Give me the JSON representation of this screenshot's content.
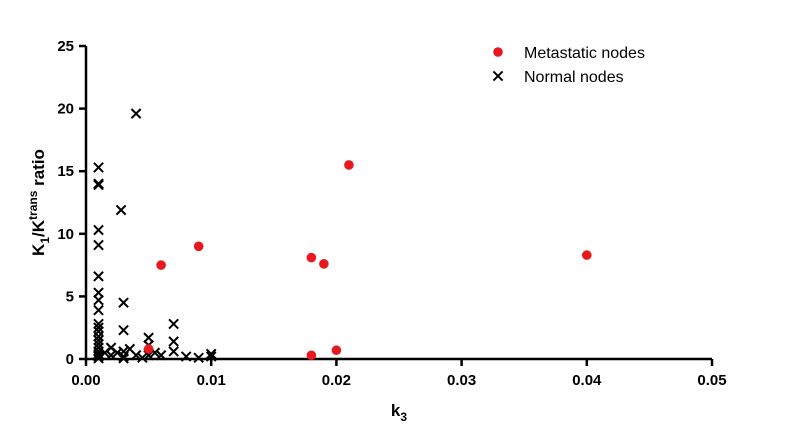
{
  "chart_data": {
    "type": "scatter",
    "xlabel": {
      "base": "k",
      "sub": "3"
    },
    "ylabel": {
      "parts": [
        {
          "text": "K",
          "shift": "none"
        },
        {
          "text": "1",
          "shift": "sub"
        },
        {
          "text": "/K",
          "shift": "none"
        },
        {
          "text": "trans",
          "shift": "super"
        },
        {
          "text": " ratio",
          "shift": "none"
        }
      ]
    },
    "xlim": [
      0,
      0.05
    ],
    "ylim": [
      0,
      25
    ],
    "x_ticks": [
      "0.00",
      "0.01",
      "0.02",
      "0.03",
      "0.04",
      "0.05"
    ],
    "y_ticks": [
      "0",
      "5",
      "10",
      "15",
      "20",
      "25"
    ],
    "x_tick_values": [
      0,
      0.01,
      0.02,
      0.03,
      0.04,
      0.05
    ],
    "y_tick_values": [
      0,
      5,
      10,
      15,
      20,
      25
    ],
    "grid": false,
    "legend_position": "top-right",
    "series": [
      {
        "name": "Metastatic nodes",
        "marker": "circle",
        "color": "#e8191e",
        "points": [
          [
            0.005,
            0.8
          ],
          [
            0.006,
            7.5
          ],
          [
            0.009,
            9.0
          ],
          [
            0.018,
            8.1
          ],
          [
            0.019,
            7.6
          ],
          [
            0.021,
            15.5
          ],
          [
            0.018,
            0.3
          ],
          [
            0.02,
            0.7
          ],
          [
            0.04,
            8.3
          ]
        ]
      },
      {
        "name": "Normal nodes",
        "marker": "x",
        "color": "#000000",
        "points": [
          [
            0.001,
            15.3
          ],
          [
            0.001,
            14.0
          ],
          [
            0.001,
            13.9
          ],
          [
            0.001,
            10.3
          ],
          [
            0.001,
            9.1
          ],
          [
            0.001,
            6.6
          ],
          [
            0.001,
            5.3
          ],
          [
            0.001,
            4.7
          ],
          [
            0.001,
            3.9
          ],
          [
            0.001,
            2.8
          ],
          [
            0.001,
            2.5
          ],
          [
            0.001,
            2.2
          ],
          [
            0.001,
            1.8
          ],
          [
            0.001,
            1.5
          ],
          [
            0.001,
            1.2
          ],
          [
            0.001,
            0.9
          ],
          [
            0.001,
            0.6
          ],
          [
            0.001,
            0.4
          ],
          [
            0.001,
            0.2
          ],
          [
            0.001,
            0.05
          ],
          [
            0.0015,
            0.5
          ],
          [
            0.002,
            0.9
          ],
          [
            0.002,
            0.3
          ],
          [
            0.0025,
            0.5
          ],
          [
            0.003,
            4.5
          ],
          [
            0.003,
            2.3
          ],
          [
            0.003,
            0.6
          ],
          [
            0.003,
            0.2
          ],
          [
            0.003,
            0.05
          ],
          [
            0.0028,
            11.9
          ],
          [
            0.004,
            19.6
          ],
          [
            0.0035,
            0.8
          ],
          [
            0.004,
            0.3
          ],
          [
            0.005,
            1.7
          ],
          [
            0.005,
            1.1
          ],
          [
            0.005,
            0.3
          ],
          [
            0.0045,
            0.1
          ],
          [
            0.0055,
            0.5
          ],
          [
            0.006,
            0.3
          ],
          [
            0.007,
            2.8
          ],
          [
            0.007,
            1.4
          ],
          [
            0.007,
            0.6
          ],
          [
            0.008,
            0.2
          ],
          [
            0.009,
            0.1
          ],
          [
            0.01,
            0.4
          ],
          [
            0.01,
            0.2
          ]
        ]
      }
    ]
  }
}
